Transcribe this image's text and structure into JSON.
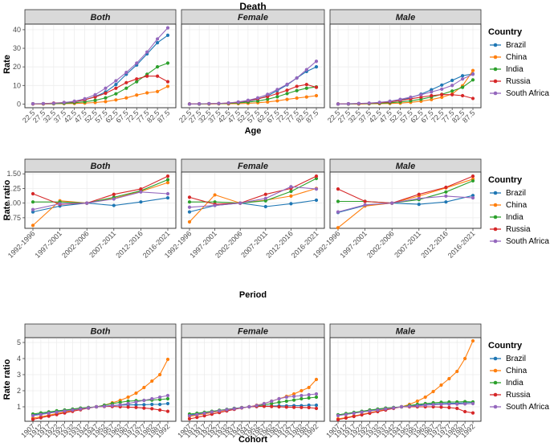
{
  "colors": {
    "Brazil": "#1f77b4",
    "China": "#ff7f0e",
    "India": "#2ca02c",
    "Russia": "#d62728",
    "South Africa": "#9467bd"
  },
  "chart_data": [
    {
      "type": "line",
      "title": "Death",
      "xlabel": "Age",
      "ylabel": "Rate",
      "ylim": [
        -2,
        43
      ],
      "yticks": [
        "0",
        "10",
        "20",
        "30",
        "40"
      ],
      "ytick_values": [
        0,
        10,
        20,
        30,
        40
      ],
      "categories": [
        "22.5",
        "27.5",
        "32.5",
        "37.5",
        "42.5",
        "47.5",
        "52.5",
        "57.5",
        "62.5",
        "67.5",
        "72.5",
        "77.5",
        "82.5",
        "87.5"
      ],
      "panels": [
        {
          "label": "Both",
          "series": [
            {
              "name": "Brazil",
              "values": [
                0.1,
                0.2,
                0.4,
                0.7,
                1.2,
                2.2,
                4.0,
                6.5,
                10.5,
                16,
                21,
                27,
                33,
                37
              ]
            },
            {
              "name": "China",
              "values": [
                0,
                0,
                0.1,
                0.2,
                0.3,
                0.5,
                0.8,
                1.3,
                2.2,
                3.3,
                4.8,
                6.0,
                6.7,
                9.5
              ]
            },
            {
              "name": "India",
              "values": [
                0.1,
                0.1,
                0.2,
                0.4,
                0.7,
                1.2,
                2.0,
                3.3,
                5.5,
                8.5,
                12,
                16,
                20,
                22
              ]
            },
            {
              "name": "Russia",
              "values": [
                0.1,
                0.2,
                0.5,
                0.8,
                1.3,
                2.3,
                3.8,
                5.8,
                8.5,
                11.5,
                13.5,
                15,
                15,
                12
              ]
            },
            {
              "name": "South Africa",
              "values": [
                0.1,
                0.2,
                0.4,
                0.8,
                1.5,
                2.8,
                5.0,
                8.5,
                12.5,
                17,
                22,
                28,
                35,
                41
              ]
            }
          ]
        },
        {
          "label": "Female",
          "series": [
            {
              "name": "Brazil",
              "values": [
                0,
                0,
                0.1,
                0.2,
                0.4,
                0.8,
                1.5,
                2.6,
                4.4,
                7.2,
                10.3,
                14,
                17.5,
                20
              ]
            },
            {
              "name": "China",
              "values": [
                0,
                0,
                0,
                0.1,
                0.1,
                0.2,
                0.4,
                0.7,
                1.1,
                1.7,
                2.5,
                3.2,
                3.8,
                4.5
              ]
            },
            {
              "name": "India",
              "values": [
                0,
                0,
                0.1,
                0.2,
                0.3,
                0.6,
                1.0,
                1.6,
                2.6,
                3.9,
                5.6,
                7.2,
                8.5,
                9.2
              ]
            },
            {
              "name": "Russia",
              "values": [
                0,
                0.1,
                0.2,
                0.3,
                0.5,
                1.0,
                1.8,
                2.8,
                4.0,
                5.6,
                7.4,
                9.5,
                10.5,
                9.0
              ]
            },
            {
              "name": "South Africa",
              "values": [
                0,
                0.1,
                0.2,
                0.3,
                0.6,
                1.1,
                2.0,
                3.3,
                5.2,
                7.8,
                10.6,
                14,
                18.5,
                23
              ]
            }
          ]
        },
        {
          "label": "Male",
          "series": [
            {
              "name": "Brazil",
              "values": [
                0,
                0.1,
                0.2,
                0.3,
                0.6,
                1.1,
                2.0,
                3.4,
                5.3,
                7.7,
                10.2,
                12.7,
                15.2,
                16.2
              ]
            },
            {
              "name": "China",
              "values": [
                0,
                0,
                0,
                0.1,
                0.2,
                0.3,
                0.5,
                0.9,
                1.5,
                2.4,
                3.6,
                5.4,
                9.8,
                18
              ]
            },
            {
              "name": "India",
              "values": [
                0,
                0,
                0.1,
                0.2,
                0.4,
                0.7,
                1.1,
                1.7,
                2.6,
                3.8,
                5.2,
                7.0,
                9.0,
                13
              ]
            },
            {
              "name": "Russia",
              "values": [
                0,
                0.1,
                0.2,
                0.4,
                0.7,
                1.2,
                1.9,
                2.8,
                3.7,
                4.5,
                5.1,
                5.0,
                4.5,
                3.0
              ]
            },
            {
              "name": "South Africa",
              "values": [
                0,
                0.1,
                0.3,
                0.5,
                0.9,
                1.5,
                2.5,
                3.7,
                5.0,
                6.5,
                8.0,
                10.0,
                13.5,
                16
              ]
            }
          ]
        }
      ]
    },
    {
      "type": "line",
      "xlabel": "Period",
      "ylabel": "Rate ratio",
      "ylim": [
        0.57,
        1.53
      ],
      "yticks": [
        "0.75",
        "1.00",
        "1.25",
        "1.50"
      ],
      "ytick_values": [
        0.75,
        1.0,
        1.25,
        1.5
      ],
      "categories": [
        "1992-1996",
        "1997-2001",
        "2002-2006",
        "2007-2011",
        "2012-2016",
        "2016-2021"
      ],
      "panels": [
        {
          "label": "Both",
          "series": [
            {
              "name": "Brazil",
              "values": [
                0.85,
                0.95,
                1.0,
                0.96,
                1.02,
                1.09
              ]
            },
            {
              "name": "China",
              "values": [
                0.62,
                1.04,
                1.0,
                1.08,
                1.2,
                1.35
              ]
            },
            {
              "name": "India",
              "values": [
                1.02,
                1.02,
                1.0,
                1.1,
                1.21,
                1.4
              ]
            },
            {
              "name": "Russia",
              "values": [
                1.16,
                0.98,
                1.0,
                1.15,
                1.24,
                1.46
              ]
            },
            {
              "name": "South Africa",
              "values": [
                0.89,
                0.99,
                1.0,
                1.07,
                1.19,
                1.16
              ]
            }
          ]
        },
        {
          "label": "Female",
          "series": [
            {
              "name": "Brazil",
              "values": [
                0.85,
                0.96,
                1.0,
                0.94,
                0.99,
                1.05
              ]
            },
            {
              "name": "China",
              "values": [
                0.68,
                1.14,
                1.0,
                1.05,
                1.12,
                1.25
              ]
            },
            {
              "name": "India",
              "values": [
                1.02,
                1.02,
                1.0,
                1.04,
                1.2,
                1.42
              ]
            },
            {
              "name": "Russia",
              "values": [
                1.1,
                0.98,
                1.0,
                1.15,
                1.25,
                1.46
              ]
            },
            {
              "name": "South Africa",
              "values": [
                0.93,
                0.96,
                1.0,
                1.08,
                1.28,
                1.24
              ]
            }
          ]
        },
        {
          "label": "Male",
          "series": [
            {
              "name": "Brazil",
              "values": [
                0.84,
                0.96,
                1.0,
                0.98,
                1.02,
                1.13
              ]
            },
            {
              "name": "China",
              "values": [
                0.58,
                0.95,
                1.0,
                1.12,
                1.26,
                1.41
              ]
            },
            {
              "name": "India",
              "values": [
                1.03,
                1.03,
                1.0,
                1.06,
                1.19,
                1.38
              ]
            },
            {
              "name": "Russia",
              "values": [
                1.24,
                1.03,
                1.0,
                1.15,
                1.27,
                1.46
              ]
            },
            {
              "name": "South Africa",
              "values": [
                0.85,
                0.97,
                1.0,
                1.08,
                1.12,
                1.09
              ]
            }
          ]
        }
      ]
    },
    {
      "type": "line",
      "xlabel": "Cohort",
      "ylabel": "Rate ratio",
      "ylim": [
        0.1,
        5.3
      ],
      "yticks": [
        "1",
        "2",
        "3",
        "4",
        "5"
      ],
      "ytick_values": [
        1,
        2,
        3,
        4,
        5
      ],
      "categories": [
        "1907",
        "1912",
        "1917",
        "1922",
        "1927",
        "1932",
        "1937",
        "1942",
        "1947",
        "1952",
        "1957",
        "1962",
        "1967",
        "1972",
        "1977",
        "1982",
        "1987",
        "1992"
      ],
      "panels": [
        {
          "label": "Both",
          "series": [
            {
              "name": "Brazil",
              "values": [
                0.5,
                0.56,
                0.62,
                0.7,
                0.77,
                0.83,
                0.9,
                0.95,
                1.0,
                1.04,
                1.08,
                1.1,
                1.12,
                1.12,
                1.13,
                1.15,
                1.15,
                1.2
              ]
            },
            {
              "name": "China",
              "values": [
                0.3,
                0.38,
                0.48,
                0.58,
                0.68,
                0.78,
                0.88,
                0.95,
                1.0,
                1.1,
                1.25,
                1.4,
                1.6,
                1.85,
                2.2,
                2.6,
                3.0,
                3.95
              ]
            },
            {
              "name": "India",
              "values": [
                0.55,
                0.62,
                0.68,
                0.75,
                0.8,
                0.86,
                0.92,
                0.96,
                1.0,
                1.1,
                1.2,
                1.28,
                1.35,
                1.38,
                1.4,
                1.42,
                1.45,
                1.5
              ]
            },
            {
              "name": "Russia",
              "values": [
                0.22,
                0.32,
                0.42,
                0.52,
                0.62,
                0.72,
                0.82,
                0.92,
                1.0,
                1.02,
                1.02,
                1.0,
                0.98,
                0.96,
                0.92,
                0.88,
                0.8,
                0.72
              ]
            },
            {
              "name": "South Africa",
              "values": [
                0.45,
                0.52,
                0.6,
                0.67,
                0.74,
                0.8,
                0.87,
                0.93,
                1.0,
                1.03,
                1.08,
                1.12,
                1.2,
                1.3,
                1.4,
                1.5,
                1.6,
                1.7
              ]
            }
          ]
        },
        {
          "label": "Female",
          "series": [
            {
              "name": "Brazil",
              "values": [
                0.5,
                0.55,
                0.62,
                0.68,
                0.76,
                0.83,
                0.9,
                0.95,
                1.0,
                1.02,
                1.04,
                1.05,
                1.06,
                1.06,
                1.07,
                1.07,
                1.1,
                1.1
              ]
            },
            {
              "name": "China",
              "values": [
                0.4,
                0.48,
                0.56,
                0.64,
                0.72,
                0.8,
                0.88,
                0.95,
                1.0,
                1.1,
                1.2,
                1.35,
                1.5,
                1.65,
                1.8,
                2.0,
                2.2,
                2.7
              ]
            },
            {
              "name": "India",
              "values": [
                0.55,
                0.6,
                0.66,
                0.72,
                0.78,
                0.84,
                0.9,
                0.95,
                1.0,
                1.05,
                1.12,
                1.2,
                1.28,
                1.35,
                1.42,
                1.5,
                1.55,
                1.6
              ]
            },
            {
              "name": "Russia",
              "values": [
                0.25,
                0.34,
                0.44,
                0.54,
                0.64,
                0.74,
                0.84,
                0.93,
                1.0,
                1.02,
                1.03,
                1.02,
                1.0,
                0.98,
                0.97,
                0.96,
                0.95,
                0.9
              ]
            },
            {
              "name": "South Africa",
              "values": [
                0.45,
                0.52,
                0.6,
                0.68,
                0.75,
                0.82,
                0.88,
                0.94,
                1.0,
                1.08,
                1.2,
                1.35,
                1.5,
                1.6,
                1.65,
                1.7,
                1.75,
                1.8
              ]
            }
          ]
        },
        {
          "label": "Male",
          "series": [
            {
              "name": "Brazil",
              "values": [
                0.5,
                0.56,
                0.62,
                0.7,
                0.78,
                0.84,
                0.9,
                0.95,
                1.0,
                1.05,
                1.1,
                1.15,
                1.18,
                1.2,
                1.22,
                1.22,
                1.25,
                1.28
              ]
            },
            {
              "name": "China",
              "values": [
                0.25,
                0.33,
                0.43,
                0.53,
                0.63,
                0.73,
                0.83,
                0.93,
                1.0,
                1.15,
                1.35,
                1.6,
                1.95,
                2.35,
                2.75,
                3.2,
                4.0,
                5.1
              ]
            },
            {
              "name": "India",
              "values": [
                0.5,
                0.58,
                0.65,
                0.72,
                0.8,
                0.86,
                0.92,
                0.96,
                1.0,
                1.08,
                1.15,
                1.2,
                1.25,
                1.28,
                1.3,
                1.3,
                1.32,
                1.3
              ]
            },
            {
              "name": "Russia",
              "values": [
                0.2,
                0.3,
                0.4,
                0.5,
                0.6,
                0.7,
                0.8,
                0.9,
                1.0,
                1.0,
                1.0,
                1.0,
                1.0,
                0.98,
                0.95,
                0.9,
                0.7,
                0.62
              ]
            },
            {
              "name": "South Africa",
              "values": [
                0.45,
                0.52,
                0.6,
                0.67,
                0.74,
                0.8,
                0.87,
                0.93,
                1.0,
                1.03,
                1.06,
                1.1,
                1.13,
                1.15,
                1.16,
                1.17,
                1.18,
                1.2
              ]
            }
          ]
        }
      ]
    }
  ],
  "legend": {
    "title": "Country",
    "entries": [
      "Brazil",
      "China",
      "India",
      "Russia",
      "South Africa"
    ]
  }
}
